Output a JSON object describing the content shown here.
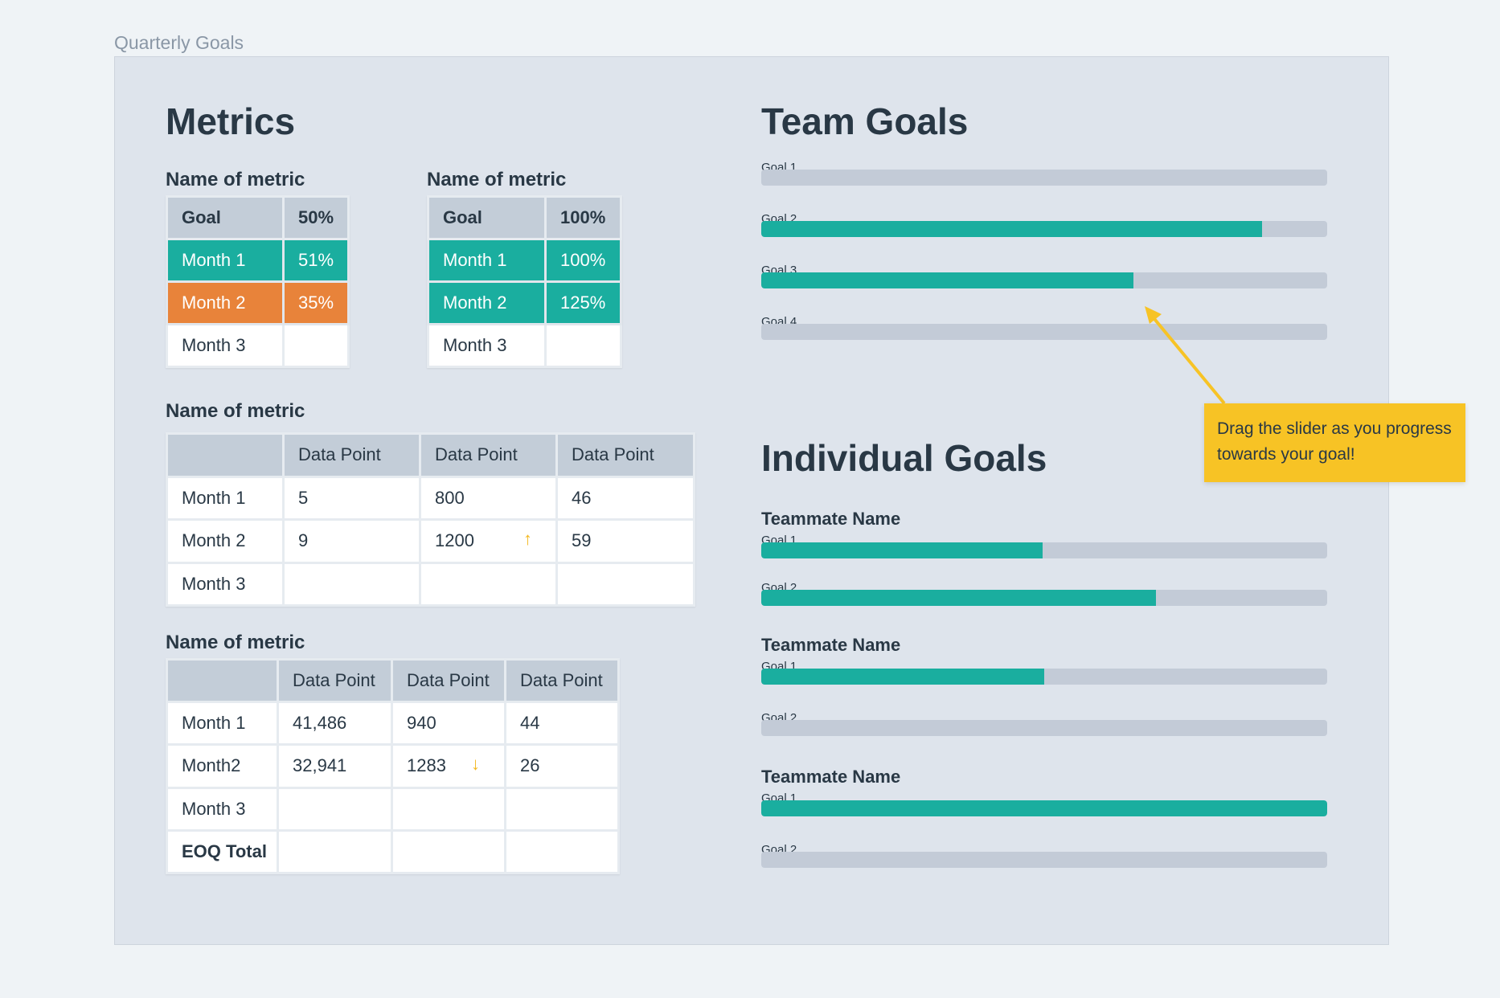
{
  "page_label": "Quarterly Goals",
  "metrics": {
    "title": "Metrics",
    "tables": [
      {
        "label": "Name of metric",
        "header": [
          "Goal",
          "50%"
        ],
        "rows": [
          {
            "cells": [
              "Month 1",
              "51%"
            ],
            "status": "teal"
          },
          {
            "cells": [
              "Month 2",
              "35%"
            ],
            "status": "orange"
          },
          {
            "cells": [
              "Month 3",
              ""
            ],
            "status": "none"
          }
        ]
      },
      {
        "label": "Name of metric",
        "header": [
          "Goal",
          "100%"
        ],
        "rows": [
          {
            "cells": [
              "Month 1",
              "100%"
            ],
            "status": "teal"
          },
          {
            "cells": [
              "Month 2",
              "125%"
            ],
            "status": "teal"
          },
          {
            "cells": [
              "Month 3",
              ""
            ],
            "status": "none"
          }
        ]
      },
      {
        "label": "Name of metric",
        "header": [
          "",
          "Data Point",
          "Data Point",
          "Data Point"
        ],
        "rows": [
          {
            "cells": [
              "Month 1",
              "5",
              "800",
              "46"
            ]
          },
          {
            "cells": [
              "Month 2",
              "9",
              "1200",
              "59"
            ],
            "trend": {
              "col": 2,
              "icon": "arrow-up-icon",
              "glyph": "↑"
            }
          },
          {
            "cells": [
              "Month 3",
              "",
              "",
              ""
            ]
          }
        ]
      },
      {
        "label": "Name of metric",
        "header": [
          "",
          "Data Point",
          "Data Point",
          "Data Point"
        ],
        "rows": [
          {
            "cells": [
              "Month 1",
              "41,486",
              "940",
              "44"
            ]
          },
          {
            "cells": [
              "Month2",
              "32,941",
              "1283",
              "26"
            ],
            "trend": {
              "col": 2,
              "icon": "arrow-down-icon",
              "glyph": "↓"
            }
          },
          {
            "cells": [
              "Month 3",
              "",
              "",
              ""
            ]
          },
          {
            "cells": [
              "EOQ Total",
              "",
              "",
              ""
            ],
            "bold_first": true
          }
        ]
      }
    ]
  },
  "team_goals": {
    "title": "Team Goals",
    "goals": [
      {
        "label": "Goal 1",
        "progress": 0.0
      },
      {
        "label": "Goal 2",
        "progress": 0.885
      },
      {
        "label": "Goal 3",
        "progress": 0.658
      },
      {
        "label": "Goal 4",
        "progress": 0.0
      }
    ]
  },
  "individual_goals": {
    "title": "Individual Goals",
    "teammates": [
      {
        "name": "Teammate Name",
        "goals": [
          {
            "label": "Goal 1",
            "progress": 0.497
          },
          {
            "label": "Goal 2",
            "progress": 0.697
          }
        ]
      },
      {
        "name": "Teammate Name",
        "goals": [
          {
            "label": "Goal 1",
            "progress": 0.5
          },
          {
            "label": "Goal 2",
            "progress": 0.0
          }
        ]
      },
      {
        "name": "Teammate Name",
        "goals": [
          {
            "label": "Goal 1",
            "progress": 1.0
          },
          {
            "label": "Goal 2",
            "progress": 0.0
          }
        ]
      }
    ]
  },
  "tooltip": {
    "text": "Drag the slider as you progress towards your goal!"
  },
  "colors": {
    "accent": "#1aae9f",
    "warning": "#e8833a",
    "header": "#c3cdd8",
    "panel": "#dee4ec",
    "track": "#c3cbd7",
    "tooltip": "#f7c325",
    "trend": "#f4b81d"
  }
}
